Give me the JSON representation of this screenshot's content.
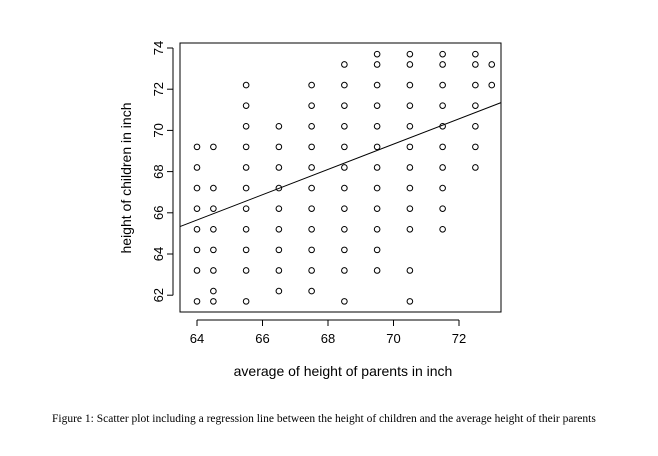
{
  "chart_data": {
    "type": "scatter",
    "xlabel": "average of height of parents in inch",
    "ylabel": "height of children in inch",
    "xlim": [
      63.8,
      73.2
    ],
    "ylim": [
      61.4,
      74.2
    ],
    "x_ticks": [
      64,
      66,
      68,
      70,
      72
    ],
    "y_ticks": [
      62,
      64,
      66,
      68,
      70,
      72,
      74
    ],
    "x_tick_labels": [
      "64",
      "66",
      "68",
      "70",
      "72"
    ],
    "y_tick_labels": [
      "62",
      "64",
      "66",
      "68",
      "70",
      "72",
      "74"
    ],
    "marker": "open-circle",
    "grid": false,
    "regression_line": {
      "intercept": 24.5,
      "slope": 0.64
    },
    "columns": [
      {
        "x": 64.0,
        "y": [
          61.7,
          65.2,
          66.2,
          67.2,
          68.2,
          69.2
        ]
      },
      {
        "x": 64.0,
        "y": [
          63.2,
          64.2
        ]
      },
      {
        "x": 64.5,
        "y": [
          61.7,
          62.2,
          63.2,
          64.2,
          65.2,
          66.2,
          67.2,
          69.2
        ]
      },
      {
        "x": 65.5,
        "y": [
          61.7,
          63.2,
          64.2,
          65.2,
          66.2,
          67.2,
          68.2,
          69.2,
          70.2,
          71.2,
          72.2
        ]
      },
      {
        "x": 66.5,
        "y": [
          62.2,
          63.2,
          64.2,
          65.2,
          66.2,
          67.2,
          68.2,
          69.2,
          70.2
        ]
      },
      {
        "x": 67.5,
        "y": [
          62.2,
          63.2,
          64.2,
          65.2,
          66.2,
          67.2,
          68.2,
          69.2,
          70.2,
          71.2,
          72.2
        ]
      },
      {
        "x": 68.5,
        "y": [
          61.7,
          63.2,
          64.2,
          65.2,
          66.2,
          67.2,
          68.2,
          69.2,
          70.2,
          71.2,
          72.2,
          73.2
        ]
      },
      {
        "x": 69.5,
        "y": [
          63.2,
          64.2,
          65.2,
          66.2,
          67.2,
          68.2,
          69.2,
          70.2,
          71.2,
          72.2,
          73.2,
          73.7
        ]
      },
      {
        "x": 70.5,
        "y": [
          61.7,
          63.2,
          65.2,
          66.2,
          67.2,
          68.2,
          69.2,
          70.2,
          71.2,
          72.2,
          73.2,
          73.7
        ]
      },
      {
        "x": 71.5,
        "y": [
          65.2,
          66.2,
          67.2,
          68.2,
          69.2,
          70.2,
          71.2,
          72.2,
          73.2,
          73.7
        ]
      },
      {
        "x": 72.5,
        "y": [
          68.2,
          69.2,
          70.2,
          71.2,
          72.2,
          73.2,
          73.7
        ]
      },
      {
        "x": 73.0,
        "y": [
          72.2,
          73.2
        ]
      }
    ]
  },
  "caption": "Figure 1: Scatter plot including a regression line between the height of children and the average height of their parents"
}
